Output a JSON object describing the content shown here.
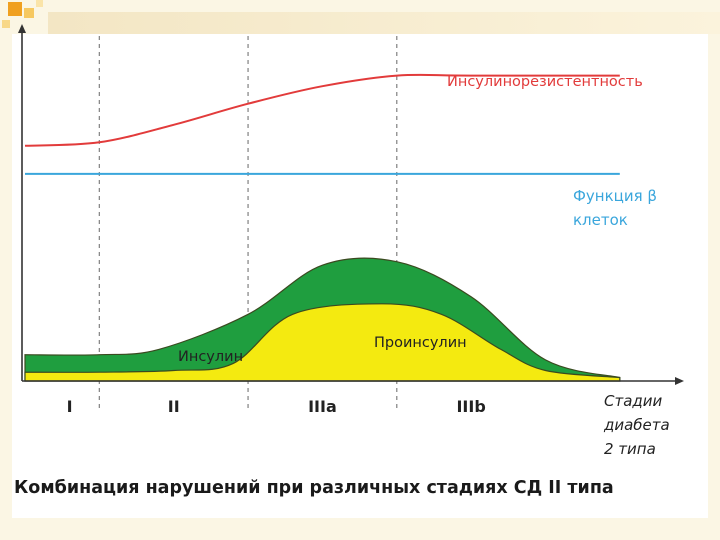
{
  "caption": "Комбинация нарушений при различных стадиях СД II типа",
  "chart_data": {
    "type": "area",
    "x_title_lines": [
      "Стадии",
      "диабета",
      "2 типа"
    ],
    "stages": [
      "I",
      "II",
      "IIIa",
      "IIIb"
    ],
    "xlim": [
      0,
      4.25
    ],
    "ylim": [
      0,
      10
    ],
    "stage_boundaries": [
      0.5,
      1.5,
      2.5
    ],
    "series": [
      {
        "name": "Инсулинорезистентность",
        "kind": "line",
        "color": "#e23b3b",
        "points": [
          [
            0,
            6.7
          ],
          [
            0.5,
            6.8
          ],
          [
            1.0,
            7.3
          ],
          [
            1.5,
            7.9
          ],
          [
            2.0,
            8.4
          ],
          [
            2.5,
            8.7
          ],
          [
            3.0,
            8.7
          ],
          [
            4.0,
            8.7
          ]
        ]
      },
      {
        "name": "Функция β клеток",
        "kind": "line",
        "color": "#3aa6dc",
        "points": [
          [
            0,
            5.9
          ],
          [
            4.0,
            5.9
          ]
        ]
      },
      {
        "name": "Инсулин",
        "kind": "area",
        "color": "#1f9e3f",
        "points": [
          [
            0,
            0.75
          ],
          [
            0.5,
            0.75
          ],
          [
            0.9,
            0.9
          ],
          [
            1.5,
            1.9
          ],
          [
            2.0,
            3.3
          ],
          [
            2.5,
            3.4
          ],
          [
            3.0,
            2.4
          ],
          [
            3.5,
            0.6
          ],
          [
            4.0,
            0.1
          ]
        ]
      },
      {
        "name": "Проинсулин",
        "kind": "area",
        "color": "#f4ea10",
        "points": [
          [
            0,
            0.25
          ],
          [
            0.5,
            0.25
          ],
          [
            1.0,
            0.3
          ],
          [
            1.4,
            0.5
          ],
          [
            1.8,
            1.9
          ],
          [
            2.4,
            2.2
          ],
          [
            2.8,
            1.9
          ],
          [
            3.2,
            0.9
          ],
          [
            3.5,
            0.3
          ],
          [
            4.0,
            0.1
          ]
        ]
      }
    ],
    "labels": {
      "insulin_resistance": "Инсулинорезистентность",
      "beta_line1": "Функция β",
      "beta_line2": "клеток",
      "insulin": "Инсулин",
      "proinsulin": "Проинсулин"
    }
  }
}
